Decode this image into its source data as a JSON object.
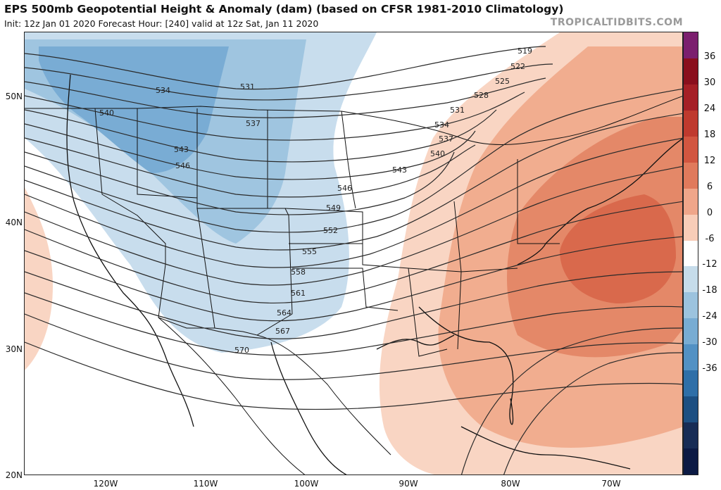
{
  "header": {
    "title": "EPS 500mb Geopotential Height & Anomaly (dam) (based on CFSR 1981-2010 Climatology)",
    "subtitle": "Init: 12z Jan 01 2020   Forecast Hour: [240]   valid at 12z Sat, Jan 11 2020",
    "credit": "TROPICALTIDBITS.COM"
  },
  "axes": {
    "lat_labels": [
      "50N",
      "40N",
      "30N",
      "20N"
    ],
    "lon_labels": [
      "120W",
      "110W",
      "100W",
      "90W",
      "80W",
      "70W"
    ]
  },
  "contours": {
    "labels": [
      "519",
      "522",
      "525",
      "528",
      "531",
      "534",
      "537",
      "540",
      "543",
      "546",
      "549",
      "552",
      "555",
      "558",
      "561",
      "564",
      "567",
      "570"
    ],
    "west_labels": [
      "534",
      "540",
      "531",
      "537",
      "543",
      "546"
    ]
  },
  "colorbar": {
    "ticks": [
      "36",
      "30",
      "24",
      "18",
      "12",
      "6",
      "0",
      "-6",
      "-12",
      "-18",
      "-24",
      "-30",
      "-36"
    ],
    "colors": [
      "#7b1f6e",
      "#8a0f1d",
      "#a51f26",
      "#bf3a2e",
      "#d25640",
      "#e07a5c",
      "#efa68a",
      "#f8cdb8",
      "#ffffff",
      "#c6dcea",
      "#9cc3de",
      "#78acd3",
      "#5291c4",
      "#2f6fa8",
      "#1d4f82",
      "#172c55",
      "#0c1a44"
    ],
    "anomaly_colors": {
      "neg_light": "#bcd6e8",
      "neg_mid": "#8fbcdc",
      "neg_dark": "#6aa2cc",
      "pos_light": "#f9d3c0",
      "pos_mid": "#f1ad8f",
      "pos_dark": "#e48666",
      "pos_core": "#d9694c"
    }
  }
}
